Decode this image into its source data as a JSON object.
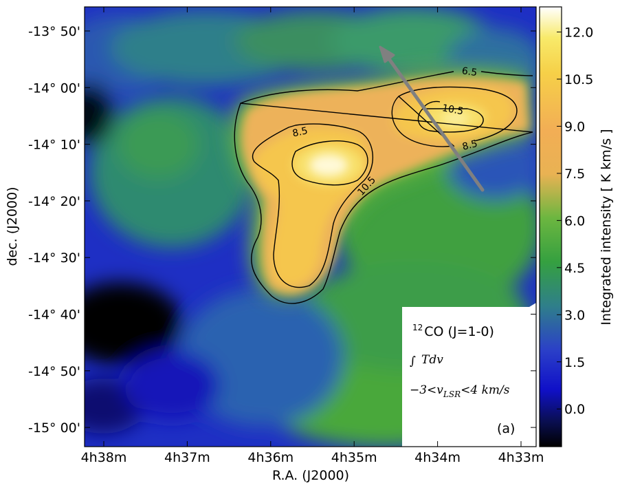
{
  "chart_data": {
    "type": "heatmap",
    "xlabel": "R.A. (J2000)",
    "ylabel": "dec. (J2000)",
    "x_ticks": [
      "4h38m",
      "4h37m",
      "4h36m",
      "4h35m",
      "4h34m",
      "4h33m"
    ],
    "y_ticks": [
      "-13° 50'",
      "-14° 00'",
      "-14° 10'",
      "-14° 20'",
      "-14° 30'",
      "-14° 40'",
      "-14° 50'",
      "-15° 00'"
    ],
    "colorbar": {
      "label": "Integrated intensity [ K km/s ]",
      "ticks": [
        "12.0",
        "10.5",
        "9.0",
        "7.5",
        "6.0",
        "4.5",
        "3.0",
        "1.5",
        "0.0"
      ],
      "range": [
        -1.2,
        12.8
      ]
    },
    "contour_levels": [
      "6.5",
      "8.5",
      "10.5"
    ],
    "peaks": [
      {
        "ra": "4h35m15s",
        "dec": "-14° 13'",
        "value": 12.8
      },
      {
        "ra": "4h34m00s",
        "dec": "-14° 05'",
        "value": 11.5
      }
    ],
    "legend": {
      "line1": "CO (J=1-0)",
      "iso": "12",
      "integral": "∫Tdv",
      "range_text": "−3<v",
      "range_sub": "LSR",
      "range_tail": "<4 km/s",
      "panel": "(a)"
    },
    "arrow_color": "#808080"
  }
}
